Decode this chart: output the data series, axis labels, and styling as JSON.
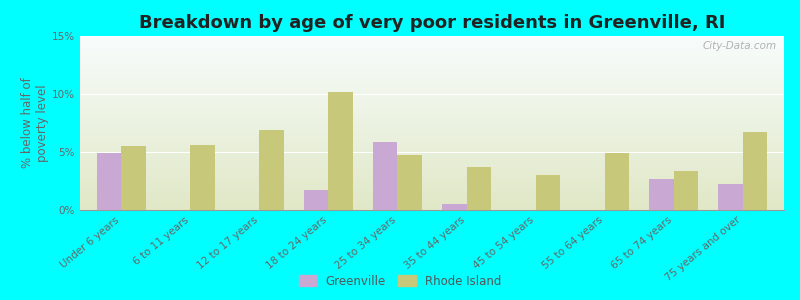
{
  "title": "Breakdown by age of very poor residents in Greenville, RI",
  "ylabel": "% below half of\npoverty level",
  "categories": [
    "Under 6 years",
    "6 to 11 years",
    "12 to 17 years",
    "18 to 24 years",
    "25 to 34 years",
    "35 to 44 years",
    "45 to 54 years",
    "55 to 64 years",
    "65 to 74 years",
    "75 years and over"
  ],
  "greenville_values": [
    4.9,
    0,
    0,
    1.7,
    5.9,
    0.5,
    0,
    0,
    2.7,
    2.2
  ],
  "rhode_island_values": [
    5.5,
    5.6,
    6.9,
    10.2,
    4.7,
    3.7,
    3.0,
    4.9,
    3.4,
    6.7
  ],
  "greenville_color": "#c9a8d4",
  "rhode_island_color": "#c8c87a",
  "background_outer": "#00ffff",
  "ylim": [
    0,
    15
  ],
  "yticks": [
    0,
    5,
    10,
    15
  ],
  "ytick_labels": [
    "0%",
    "5%",
    "10%",
    "15%"
  ],
  "title_fontsize": 13,
  "label_fontsize": 8.5,
  "tick_fontsize": 7.5,
  "legend_labels": [
    "Greenville",
    "Rhode Island"
  ],
  "watermark": "City-Data.com",
  "bar_width": 0.35
}
